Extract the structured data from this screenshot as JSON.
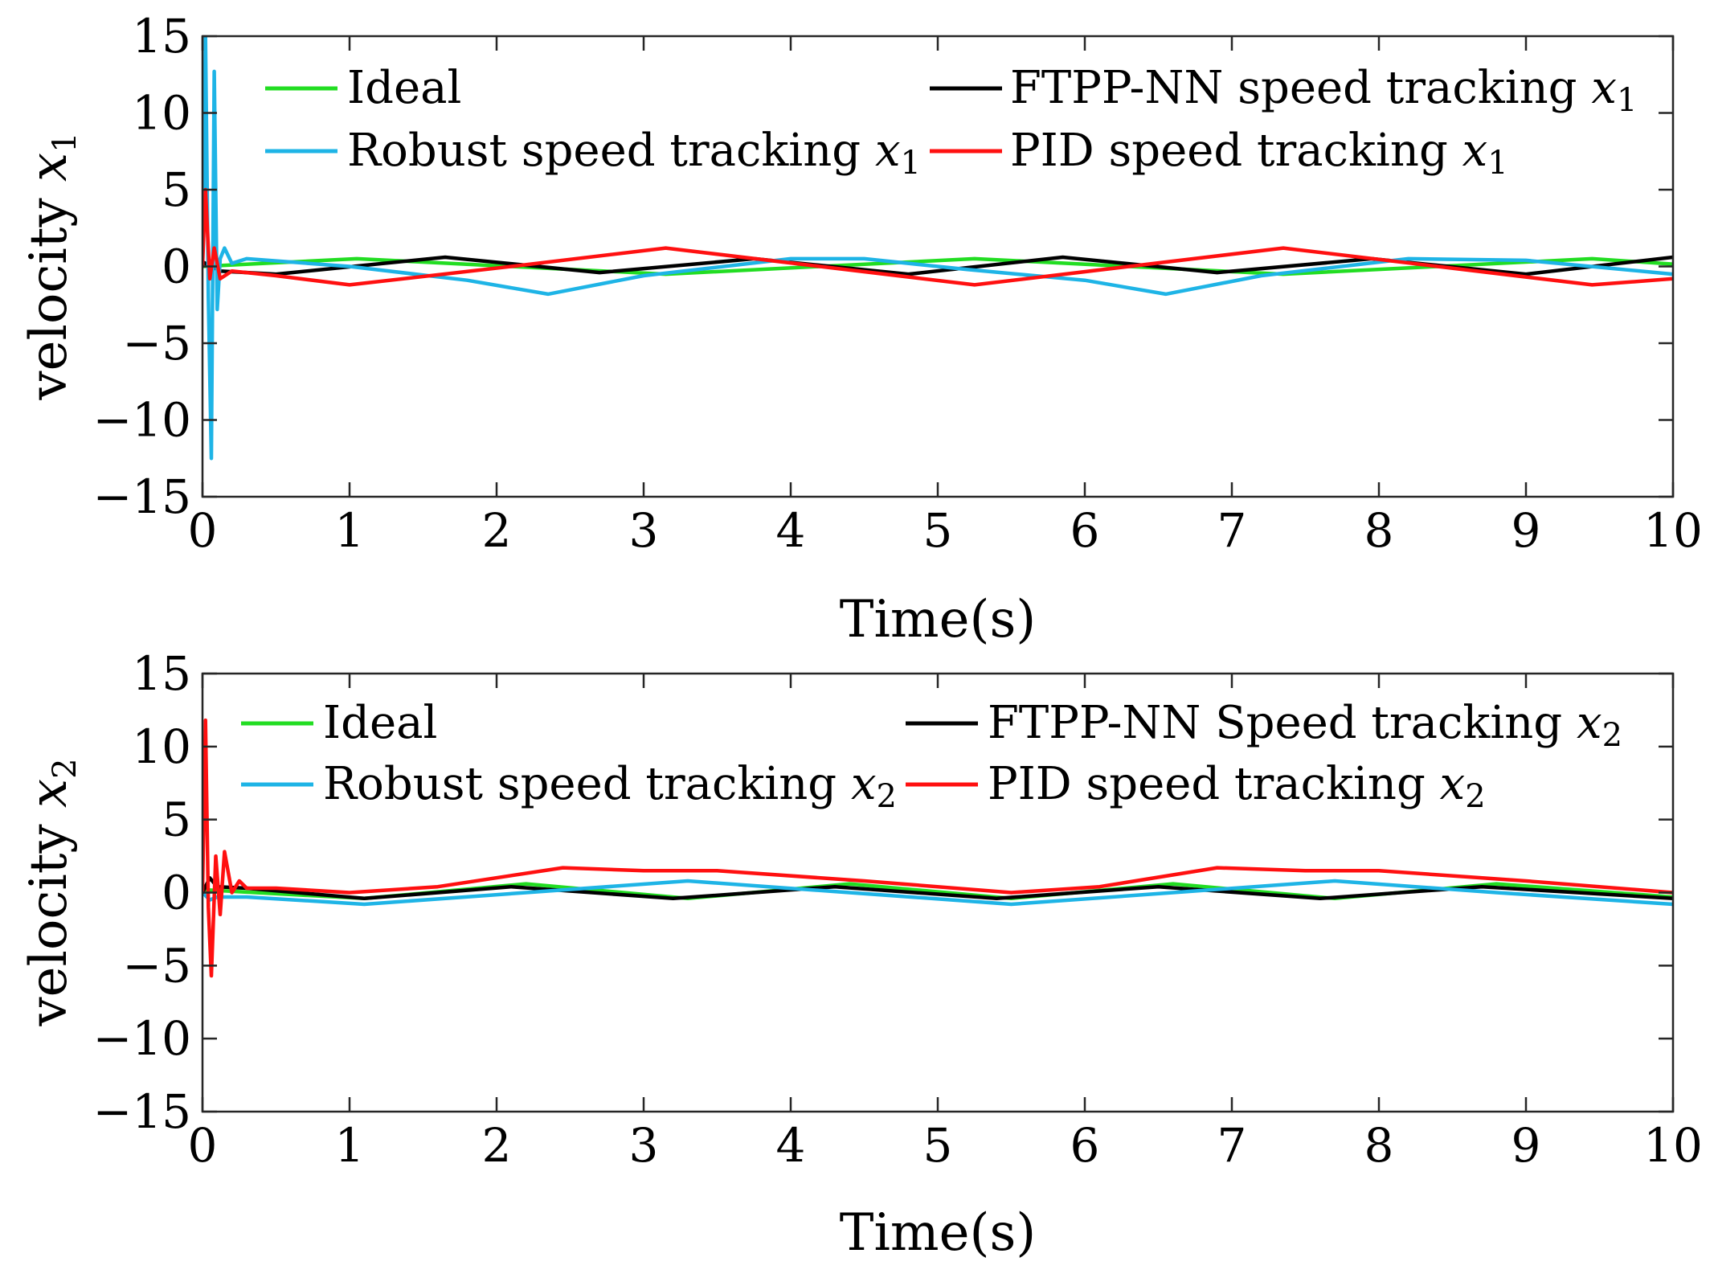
{
  "chart_data": [
    {
      "type": "line",
      "xlabel": "Time(s)",
      "ylabel": "velocity",
      "ylabel_var": "x",
      "ylabel_sub": "1",
      "xlim": [
        0,
        10
      ],
      "ylim": [
        -15,
        15
      ],
      "xticks": [
        0,
        1,
        2,
        3,
        4,
        5,
        6,
        7,
        8,
        9,
        10
      ],
      "yticks": [
        -15,
        -10,
        -5,
        0,
        5,
        10,
        15
      ],
      "series": [
        {
          "name": "Ideal",
          "color": "#22dd22",
          "x": [
            0,
            1.05,
            2.1,
            3.15,
            4.2,
            5.25,
            6.3,
            7.35,
            8.4,
            9.45,
            10
          ],
          "y": [
            0,
            0.5,
            0,
            -0.5,
            0,
            0.5,
            0,
            -0.5,
            0,
            0.5,
            0.15
          ]
        },
        {
          "name": "FTPP-NN speed tracking",
          "name_var": "x",
          "name_sub": "1",
          "color": "#000000",
          "x": [
            0,
            0.12,
            0.5,
            1.65,
            2.7,
            3.75,
            4.8,
            5.85,
            6.9,
            7.95,
            9.0,
            10
          ],
          "y": [
            0.3,
            -0.3,
            -0.5,
            0.6,
            -0.4,
            0.5,
            -0.5,
            0.6,
            -0.4,
            0.5,
            -0.5,
            0.6
          ]
        },
        {
          "name": "Robust speed tracking",
          "name_var": "x",
          "name_sub": "1",
          "color": "#1eb4e6",
          "x": [
            0,
            0.02,
            0.04,
            0.06,
            0.08,
            0.1,
            0.12,
            0.15,
            0.2,
            0.3,
            1.0,
            1.8,
            2.35,
            3.0,
            4.0,
            4.5,
            5.2,
            6.0,
            6.55,
            7.2,
            8.2,
            9.0,
            10
          ],
          "y": [
            0,
            15,
            -2,
            -12.5,
            12.7,
            -2.8,
            0.5,
            1.2,
            0.2,
            0.5,
            0,
            -0.9,
            -1.8,
            -0.6,
            0.5,
            0.5,
            -0.2,
            -0.9,
            -1.8,
            -0.6,
            0.5,
            0.4,
            -0.5
          ]
        },
        {
          "name": "PID speed tracking",
          "name_var": "x",
          "name_sub": "1",
          "color": "#ff1010",
          "x": [
            0,
            0.02,
            0.05,
            0.08,
            0.12,
            0.2,
            0.5,
            1.0,
            2.1,
            3.15,
            4.2,
            5.25,
            6.3,
            7.35,
            8.4,
            9.45,
            10
          ],
          "y": [
            0,
            5,
            -0.8,
            1.2,
            -0.8,
            -0.3,
            -0.6,
            -1.2,
            0,
            1.2,
            0,
            -1.2,
            0,
            1.2,
            0,
            -1.2,
            -0.8
          ]
        }
      ]
    },
    {
      "type": "line",
      "xlabel": "Time(s)",
      "ylabel": "velocity",
      "ylabel_var": "x",
      "ylabel_sub": "2",
      "xlim": [
        0,
        10
      ],
      "ylim": [
        -15,
        15
      ],
      "xticks": [
        0,
        1,
        2,
        3,
        4,
        5,
        6,
        7,
        8,
        9,
        10
      ],
      "yticks": [
        -15,
        -10,
        -5,
        0,
        5,
        10,
        15
      ],
      "series": [
        {
          "name": "Ideal",
          "color": "#22dd22",
          "x": [
            0,
            1.1,
            2.2,
            3.3,
            4.4,
            5.5,
            6.6,
            7.7,
            8.8,
            10
          ],
          "y": [
            0.2,
            -0.4,
            0.6,
            -0.4,
            0.6,
            -0.4,
            0.6,
            -0.4,
            0.6,
            -0.3
          ]
        },
        {
          "name": "FTPP-NN Speed tracking",
          "name_var": "x",
          "name_sub": "2",
          "color": "#000000",
          "x": [
            0,
            0.05,
            0.1,
            0.3,
            1.1,
            2.1,
            3.2,
            4.3,
            5.4,
            6.5,
            7.6,
            8.7,
            10
          ],
          "y": [
            0,
            1,
            0.4,
            0.3,
            -0.4,
            0.4,
            -0.4,
            0.4,
            -0.4,
            0.4,
            -0.4,
            0.4,
            -0.4
          ]
        },
        {
          "name": "Robust speed tracking",
          "name_var": "x",
          "name_sub": "2",
          "color": "#1eb4e6",
          "x": [
            0,
            0.05,
            0.1,
            0.3,
            1.1,
            2.2,
            3.3,
            4.4,
            5.5,
            6.6,
            7.7,
            8.8,
            10
          ],
          "y": [
            0,
            -0.5,
            -0.3,
            -0.3,
            -0.8,
            0,
            0.8,
            0,
            -0.8,
            0,
            0.8,
            0,
            -0.8
          ]
        },
        {
          "name": "PID speed tracking",
          "name_var": "x",
          "name_sub": "2",
          "color": "#ff1010",
          "x": [
            0,
            0.02,
            0.04,
            0.06,
            0.09,
            0.12,
            0.15,
            0.2,
            0.25,
            0.3,
            0.5,
            1.0,
            1.6,
            2.45,
            3.0,
            3.5,
            4.5,
            5.5,
            6.1,
            6.9,
            7.5,
            8.0,
            9.0,
            10
          ],
          "y": [
            0,
            11.8,
            -1,
            -5.7,
            2.5,
            -1.5,
            2.8,
            0,
            0.8,
            0.3,
            0.3,
            0,
            0.4,
            1.7,
            1.5,
            1.5,
            0.8,
            0,
            0.4,
            1.7,
            1.5,
            1.5,
            0.8,
            0
          ]
        }
      ]
    }
  ]
}
